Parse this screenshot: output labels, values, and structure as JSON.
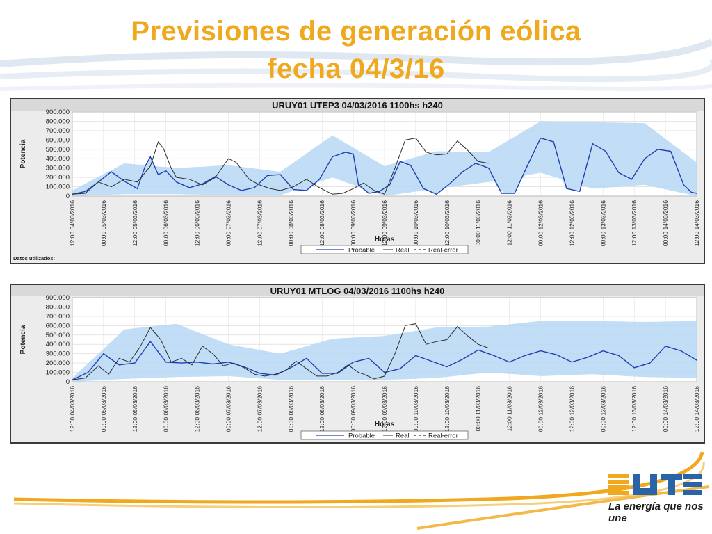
{
  "slide": {
    "title_line1": "Previsiones de generación eólica",
    "title_line2": "fecha 04/3/16",
    "title_color": "#f0a81e"
  },
  "logo": {
    "brand": "UTE",
    "tagline": "La energía que nos une"
  },
  "colors": {
    "band": "#b7d8f5",
    "probable": "#1f3fb0",
    "real": "#2b2b2b",
    "accent_orange": "#f0a81e",
    "accent_blue": "#2a64a8"
  },
  "chart_data": [
    {
      "type": "line",
      "title": "URUY01  UTEP3  04/03/2016  1100hs    h240",
      "xlabel": "Horas",
      "ylabel": "Potencia",
      "ylim": [
        0,
        900000
      ],
      "yticks": [
        "0",
        "100.000",
        "200.000",
        "300.000",
        "400.000",
        "500.000",
        "600.000",
        "700.000",
        "800.000",
        "900.000"
      ],
      "x_range_hours": [
        0,
        240
      ],
      "xticks": [
        "12:00 04/03/2016",
        "00:00 05/03/2016",
        "12:00 05/03/2016",
        "00:00 06/03/2016",
        "12:00 06/03/2016",
        "00:00 07/03/2016",
        "12:00 07/03/2016",
        "00:00 08/03/2016",
        "12:00 08/03/2016",
        "00:00 09/03/2016",
        "12:00 09/03/2016",
        "00:00 10/03/2016",
        "12:00 10/03/2016",
        "00:00 11/03/2016",
        "12:00 11/03/2016",
        "00:00 12/03/2016",
        "12:00 12/03/2016",
        "00:00 13/03/2016",
        "12:00 13/03/2016",
        "00:00 14/03/2016",
        "12:00 14/03/2016"
      ],
      "legend": [
        "Probable",
        "Real",
        "Real-error"
      ],
      "footnote": "Datos utilizados:",
      "series": [
        {
          "name": "Probable",
          "x": [
            0,
            5,
            10,
            15,
            20,
            25,
            28,
            30,
            33,
            36,
            40,
            45,
            50,
            55,
            60,
            65,
            70,
            75,
            80,
            85,
            90,
            95,
            100,
            105,
            108,
            110,
            114,
            118,
            122,
            126,
            130,
            135,
            140,
            145,
            150,
            155,
            160,
            165,
            170,
            175,
            180,
            185,
            190,
            195,
            200,
            205,
            210,
            215,
            220,
            225,
            230,
            235,
            238,
            240
          ],
          "y": [
            20000,
            50000,
            150000,
            260000,
            160000,
            80000,
            320000,
            420000,
            230000,
            270000,
            150000,
            90000,
            130000,
            210000,
            120000,
            60000,
            90000,
            220000,
            230000,
            70000,
            60000,
            180000,
            420000,
            470000,
            450000,
            120000,
            30000,
            50000,
            120000,
            370000,
            330000,
            80000,
            20000,
            130000,
            260000,
            350000,
            300000,
            30000,
            30000,
            330000,
            620000,
            580000,
            80000,
            50000,
            560000,
            480000,
            250000,
            180000,
            400000,
            500000,
            480000,
            120000,
            40000,
            30000
          ]
        },
        {
          "name": "Probable-lower",
          "x": [
            0,
            20,
            40,
            60,
            80,
            100,
            120,
            140,
            160,
            180,
            200,
            220,
            240
          ],
          "y": [
            0,
            20000,
            20000,
            10000,
            10000,
            200000,
            0,
            80000,
            150000,
            250000,
            80000,
            120000,
            0
          ]
        },
        {
          "name": "Probable-upper",
          "x": [
            0,
            20,
            40,
            60,
            80,
            100,
            120,
            140,
            160,
            180,
            200,
            220,
            240
          ],
          "y": [
            60000,
            350000,
            300000,
            330000,
            260000,
            650000,
            320000,
            480000,
            470000,
            800000,
            790000,
            780000,
            360000
          ]
        },
        {
          "name": "Real",
          "x": [
            0,
            5,
            10,
            15,
            20,
            25,
            30,
            33,
            35,
            38,
            40,
            45,
            50,
            55,
            60,
            63,
            68,
            72,
            76,
            80,
            85,
            90,
            95,
            100,
            104,
            108,
            112,
            116,
            120,
            124,
            128,
            132,
            136,
            140,
            144,
            148,
            152,
            156,
            160
          ],
          "y": [
            20000,
            30000,
            150000,
            100000,
            180000,
            150000,
            320000,
            580000,
            510000,
            300000,
            200000,
            180000,
            120000,
            200000,
            400000,
            360000,
            180000,
            120000,
            80000,
            60000,
            100000,
            180000,
            90000,
            20000,
            30000,
            80000,
            140000,
            60000,
            20000,
            300000,
            600000,
            620000,
            470000,
            440000,
            450000,
            590000,
            490000,
            370000,
            350000
          ]
        }
      ]
    },
    {
      "type": "line",
      "title": "URUY01  MTLOG  04/03/2016  1100hs    h240",
      "xlabel": "Horas",
      "ylabel": "Potencia",
      "ylim": [
        0,
        900000
      ],
      "yticks": [
        "0",
        "100.000",
        "200.000",
        "300.000",
        "400.000",
        "500.000",
        "600.000",
        "700.000",
        "800.000",
        "900.000"
      ],
      "x_range_hours": [
        0,
        240
      ],
      "xticks": [
        "12:00 04/03/2016",
        "00:00 05/03/2016",
        "12:00 05/03/2016",
        "00:00 06/03/2016",
        "12:00 06/03/2016",
        "00:00 07/03/2016",
        "12:00 07/03/2016",
        "00:00 08/03/2016",
        "12:00 08/03/2016",
        "00:00 09/03/2016",
        "12:00 09/03/2016",
        "00:00 10/03/2016",
        "12:00 10/03/2016",
        "00:00 11/03/2016",
        "12:00 11/03/2016",
        "00:00 12/03/2016",
        "12:00 12/03/2016",
        "00:00 13/03/2016",
        "12:00 13/03/2016",
        "00:00 14/03/2016",
        "12:00 14/03/2016"
      ],
      "legend": [
        "Probable",
        "Real",
        "Real-error"
      ],
      "series": [
        {
          "name": "Probable",
          "x": [
            0,
            6,
            12,
            18,
            24,
            30,
            36,
            42,
            48,
            54,
            60,
            66,
            72,
            78,
            84,
            90,
            96,
            102,
            108,
            114,
            120,
            126,
            132,
            138,
            144,
            150,
            156,
            162,
            168,
            174,
            180,
            186,
            192,
            198,
            204,
            210,
            216,
            222,
            228,
            234,
            240
          ],
          "y": [
            20000,
            100000,
            300000,
            180000,
            200000,
            430000,
            210000,
            200000,
            210000,
            190000,
            210000,
            160000,
            90000,
            70000,
            150000,
            250000,
            90000,
            90000,
            210000,
            250000,
            100000,
            140000,
            280000,
            220000,
            160000,
            240000,
            340000,
            280000,
            210000,
            280000,
            330000,
            290000,
            210000,
            260000,
            330000,
            280000,
            150000,
            200000,
            380000,
            330000,
            230000
          ]
        },
        {
          "name": "Probable-lower",
          "x": [
            0,
            20,
            40,
            60,
            80,
            100,
            120,
            140,
            160,
            180,
            200,
            220,
            240
          ],
          "y": [
            0,
            30000,
            50000,
            60000,
            20000,
            20000,
            20000,
            40000,
            100000,
            60000,
            80000,
            50000,
            40000
          ]
        },
        {
          "name": "Probable-upper",
          "x": [
            0,
            20,
            40,
            60,
            80,
            100,
            120,
            140,
            160,
            180,
            200,
            220,
            240
          ],
          "y": [
            40000,
            560000,
            620000,
            400000,
            300000,
            460000,
            490000,
            580000,
            590000,
            650000,
            650000,
            640000,
            650000
          ]
        },
        {
          "name": "Real",
          "x": [
            0,
            5,
            10,
            14,
            18,
            22,
            26,
            30,
            34,
            38,
            42,
            46,
            50,
            54,
            58,
            62,
            66,
            70,
            74,
            78,
            82,
            86,
            90,
            94,
            98,
            102,
            106,
            110,
            112,
            116,
            120,
            124,
            128,
            132,
            136,
            140,
            144,
            148,
            152,
            156,
            160
          ],
          "y": [
            20000,
            40000,
            170000,
            80000,
            250000,
            210000,
            370000,
            580000,
            450000,
            210000,
            250000,
            180000,
            380000,
            300000,
            170000,
            200000,
            150000,
            80000,
            60000,
            80000,
            120000,
            220000,
            140000,
            60000,
            60000,
            100000,
            180000,
            100000,
            80000,
            30000,
            60000,
            300000,
            600000,
            620000,
            400000,
            430000,
            450000,
            590000,
            490000,
            400000,
            360000
          ]
        }
      ]
    }
  ]
}
